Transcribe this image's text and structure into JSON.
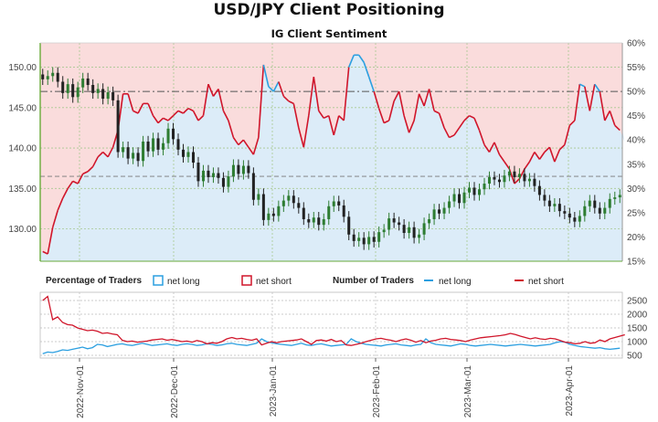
{
  "title": "USD/JPY Client Positioning",
  "subtitle": "IG Client Sentiment",
  "colors": {
    "long": "#2b9fe0",
    "short": "#d0152a",
    "long_fill": "#dcecf8",
    "short_fill": "#fadcdc",
    "candle_up": "#2e7d32",
    "candle_down": "#222222",
    "price_axis": "#6aaa3a"
  },
  "legend": {
    "pct_title": "Percentage of Traders",
    "num_title": "Number of Traders",
    "net_long": "net long",
    "net_short": "net short"
  },
  "chart_data": [
    {
      "type": "candlestick",
      "title": "USD/JPY Client Positioning",
      "subtitle": "IG Client Sentiment",
      "y_left": {
        "ticks": [
          130,
          135,
          140,
          145,
          150
        ],
        "range": [
          126,
          153
        ],
        "tick_labels": [
          "130.00",
          "135.00",
          "140.00",
          "145.00",
          "150.00"
        ]
      },
      "y_right": {
        "ticks": [
          15,
          20,
          25,
          30,
          35,
          40,
          45,
          50,
          55,
          60
        ],
        "range": [
          15,
          60
        ],
        "tick_labels": [
          "15%",
          "20%",
          "25%",
          "30%",
          "35%",
          "40%",
          "45%",
          "50%",
          "55%",
          "60%"
        ]
      },
      "reference_lines": {
        "pct_50": 50,
        "pct_32": 32.5
      },
      "close": [
        148.5,
        148.9,
        149.3,
        148.2,
        146.8,
        147.9,
        146.3,
        147.5,
        148.6,
        147.8,
        146.8,
        147.3,
        146.1,
        146.9,
        145.9,
        139.5,
        140.1,
        138.7,
        139.4,
        138.4,
        140.8,
        139.6,
        141.2,
        139.8,
        140.6,
        142.4,
        141.1,
        139.8,
        138.9,
        139.5,
        138.2,
        135.9,
        137.2,
        136.4,
        136.9,
        136.3,
        135.2,
        136.5,
        137.9,
        136.8,
        137.8,
        136.9,
        133.6,
        134.3,
        131.1,
        131.9,
        131.6,
        132.8,
        133.5,
        134.1,
        133.2,
        132.6,
        131.2,
        130.8,
        131.4,
        130.5,
        131.2,
        132.8,
        133.4,
        132.9,
        131.5,
        129.3,
        128.5,
        128.9,
        128.1,
        129.0,
        128.4,
        129.6,
        129.9,
        131.3,
        130.8,
        130.5,
        129.5,
        130.2,
        128.9,
        129.3,
        130.7,
        131.2,
        132.4,
        131.9,
        132.6,
        133.4,
        134.3,
        133.2,
        134.5,
        135.1,
        134.2,
        134.9,
        135.6,
        136.4,
        136.1,
        135.8,
        136.6,
        137.1,
        136.4,
        136.8,
        135.9,
        136.2,
        135.3,
        134.2,
        133.5,
        132.8,
        133.1,
        132.2,
        131.9,
        131.4,
        130.9,
        131.6,
        132.8,
        133.5,
        132.6,
        131.9,
        132.6,
        133.7,
        133.9,
        134.2
      ],
      "long_pct": [
        17.0,
        16.5,
        22.0,
        25.5,
        28.0,
        30.0,
        31.5,
        31.0,
        33.0,
        33.5,
        34.5,
        36.5,
        37.5,
        36.5,
        38.5,
        42.0,
        49.5,
        49.5,
        46.0,
        45.5,
        47.5,
        47.5,
        45.0,
        43.5,
        44.5,
        44.0,
        45.0,
        46.0,
        45.5,
        46.5,
        46.0,
        44.0,
        45.0,
        51.5,
        49.0,
        50.5,
        46.0,
        44.0,
        40.5,
        39.0,
        40.0,
        38.5,
        37.0,
        40.5,
        55.5,
        51.0,
        50.0,
        52.0,
        49.0,
        48.0,
        47.5,
        42.5,
        38.5,
        45.0,
        53.0,
        46.0,
        44.5,
        45.0,
        41.0,
        45.0,
        44.0,
        55.0,
        57.5,
        57.5,
        56.0,
        53.0,
        50.0,
        46.5,
        43.5,
        44.0,
        48.0,
        50.0,
        45.0,
        41.5,
        44.0,
        49.5,
        47.0,
        50.5,
        46.0,
        45.5,
        42.5,
        40.5,
        41.0,
        42.5,
        44.0,
        45.0,
        44.5,
        42.0,
        39.0,
        37.5,
        39.5,
        37.0,
        35.5,
        34.0,
        31.0,
        32.0,
        34.0,
        35.5,
        37.5,
        36.0,
        37.5,
        38.5,
        35.5,
        38.0,
        39.0,
        43.0,
        44.0,
        51.5,
        51.0,
        46.0,
        51.5,
        50.0,
        44.0,
        46.0,
        43.0,
        42.0,
        39.5
      ],
      "short_pct": null
    },
    {
      "type": "line",
      "title": "Number of Traders",
      "y_ticks": [
        500,
        1000,
        1500,
        2000,
        2500
      ],
      "y_range": [
        400,
        2800
      ],
      "x_tick_labels": [
        "2022-Nov-01",
        "2022-Dec-01",
        "2023-Jan-01",
        "2023-Feb-01",
        "2023-Mar-01",
        "2023-Apr-01"
      ],
      "series": [
        {
          "name": "net long",
          "values": [
            560,
            620,
            600,
            640,
            700,
            680,
            720,
            760,
            800,
            740,
            780,
            900,
            880,
            820,
            860,
            900,
            920,
            880,
            860,
            900,
            940,
            900,
            860,
            880,
            900,
            920,
            880,
            860,
            900,
            920,
            900,
            860,
            880,
            920,
            900,
            860,
            880,
            920,
            940,
            900,
            880,
            860,
            900,
            940,
            1100,
            1000,
            960,
            920,
            900,
            880,
            860,
            900,
            940,
            880,
            860,
            900,
            920,
            880,
            840,
            860,
            880,
            900,
            1100,
            1000,
            940,
            900,
            880,
            860,
            840,
            880,
            900,
            920,
            880,
            860,
            840,
            880,
            900,
            1100,
            960,
            900,
            880,
            860,
            840,
            880,
            920,
            900,
            860,
            840,
            860,
            880,
            900,
            880,
            860,
            840,
            860,
            880,
            900,
            880,
            860,
            840,
            860,
            880,
            900,
            960,
            1000,
            980,
            900,
            860,
            820,
            800,
            780,
            760,
            780,
            740,
            720,
            740,
            760
          ]
        },
        {
          "name": "net short",
          "values": [
            2500,
            2650,
            1800,
            1900,
            1700,
            1620,
            1600,
            1500,
            1450,
            1400,
            1420,
            1380,
            1300,
            1320,
            1280,
            1250,
            1050,
            1000,
            1020,
            980,
            1000,
            1020,
            1060,
            1080,
            1100,
            1050,
            1080,
            1040,
            1000,
            1020,
            980,
            1040,
            1000,
            920,
            960,
            940,
            1000,
            1100,
            1150,
            1100,
            1120,
            1080,
            1050,
            1100,
            880,
            940,
            1000,
            960,
            1000,
            1020,
            1040,
            1060,
            1100,
            1000,
            900,
            1040,
            1060,
            1020,
            1080,
            1000,
            1040,
            880,
            860,
            900,
            940,
            1000,
            1050,
            1100,
            1120,
            1080,
            1050,
            1000,
            1060,
            1100,
            1050,
            980,
            1040,
            960,
            1020,
            1050,
            1100,
            1120,
            1080,
            1060,
            1040,
            1000,
            1060,
            1100,
            1140,
            1160,
            1180,
            1200,
            1220,
            1250,
            1300,
            1260,
            1200,
            1150,
            1100,
            1140,
            1100,
            1080,
            1120,
            1100,
            1040,
            980,
            960,
            920,
            940,
            1000,
            940,
            960,
            1060,
            1000,
            1100,
            1150,
            1200,
            1250
          ]
        }
      ]
    }
  ]
}
